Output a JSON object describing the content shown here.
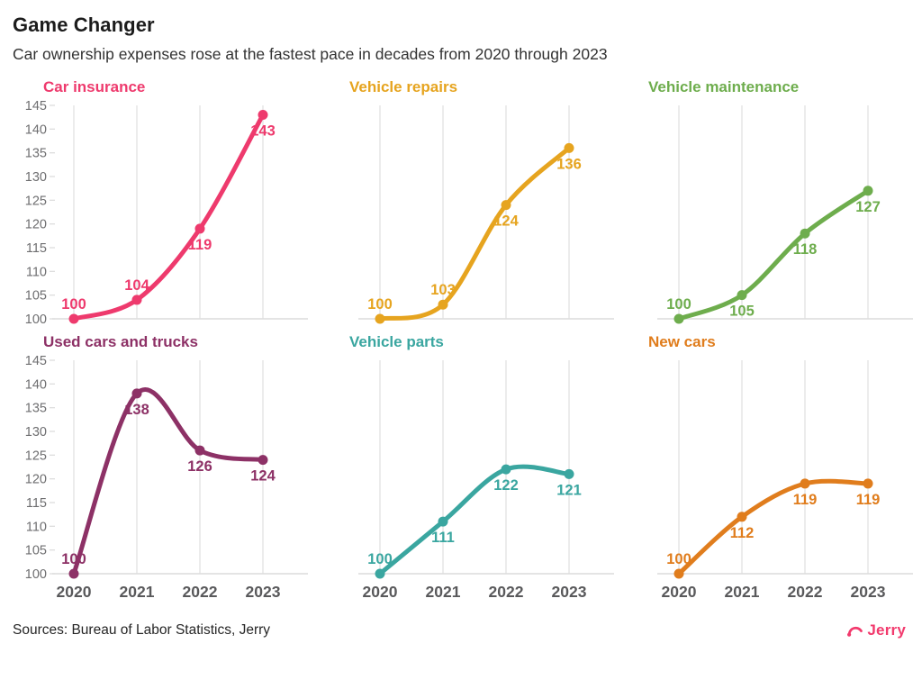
{
  "header": {
    "title": "Game Changer",
    "subtitle": "Car ownership expenses rose at the fastest pace in decades from 2020 through 2023"
  },
  "chart_data": {
    "type": "line",
    "x": [
      "2020",
      "2021",
      "2022",
      "2023"
    ],
    "y_axis": {
      "min": 100,
      "max": 145,
      "step": 5
    },
    "layout": {
      "grid": "vertical-gridlines-and-baseline",
      "legend": "none",
      "small_multiples": true,
      "rows": 2,
      "cols": 3,
      "y_ticks_on_first_column_only": true,
      "x_labels_on_bottom_row_only": true
    },
    "axis_colors": {
      "tick_label": "#6e6e70",
      "x_label": "#59595b",
      "gridline": "#ececec",
      "baseline": "#dcdcdc",
      "tick_mark": "#dddddd"
    },
    "panels": [
      {
        "title": "Car insurance",
        "color": "#ee3a6d",
        "values": [
          100,
          104,
          119,
          143
        ],
        "label_pos": [
          "above",
          "above",
          "below",
          "below"
        ]
      },
      {
        "title": "Vehicle repairs",
        "color": "#e6a41f",
        "values": [
          100,
          103,
          124,
          136
        ],
        "label_pos": [
          "above",
          "above",
          "below",
          "below"
        ]
      },
      {
        "title": "Vehicle maintenance",
        "color": "#6ead4d",
        "values": [
          100,
          105,
          118,
          127
        ],
        "label_pos": [
          "above",
          "below",
          "below",
          "below"
        ]
      },
      {
        "title": "Used cars and trucks",
        "color": "#8d3166",
        "values": [
          100,
          138,
          126,
          124
        ],
        "label_pos": [
          "above",
          "below",
          "below",
          "below"
        ]
      },
      {
        "title": "Vehicle parts",
        "color": "#3aa6a0",
        "values": [
          100,
          111,
          122,
          121
        ],
        "label_pos": [
          "above",
          "below",
          "below",
          "below"
        ]
      },
      {
        "title": "New cars",
        "color": "#e07d1d",
        "values": [
          100,
          112,
          119,
          119
        ],
        "label_pos": [
          "above",
          "below",
          "below",
          "below"
        ]
      }
    ]
  },
  "footer": {
    "sources": "Sources: Bureau of Labor Statistics, Jerry",
    "brand": "Jerry",
    "brand_color": "#f23a6d"
  }
}
